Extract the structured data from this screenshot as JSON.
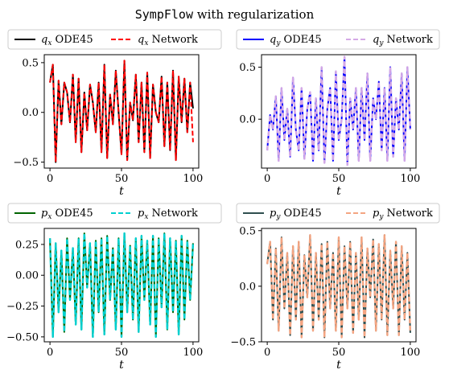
{
  "figure": {
    "title_mono": "SympFlow",
    "title_rest": " with regularization"
  },
  "chart_data": [
    {
      "type": "line",
      "xlabel": "t",
      "ylabel": "",
      "xlim": [
        -4,
        104
      ],
      "ylim": [
        -0.56,
        0.58
      ],
      "xticks": [
        0,
        50,
        100
      ],
      "xtick_labels": [
        "0",
        "50",
        "100"
      ],
      "yticks": [
        -0.5,
        0.0,
        0.5
      ],
      "ytick_labels": [
        "−0.5",
        "0.0",
        "0.5"
      ],
      "legend": {
        "position": "top",
        "entries": [
          {
            "label_sym": "q",
            "label_sub": "x",
            "label_rest": "ODE45",
            "color": "#000000",
            "dash": "solid"
          },
          {
            "label_sym": "q",
            "label_sub": "x",
            "label_rest": "Network",
            "color": "#ff0000",
            "dash": "dashed"
          }
        ]
      },
      "x": [
        0,
        2,
        4,
        6,
        8,
        10,
        12,
        14,
        16,
        18,
        20,
        22,
        24,
        26,
        28,
        30,
        32,
        34,
        36,
        38,
        40,
        42,
        44,
        46,
        48,
        50,
        52,
        54,
        56,
        58,
        60,
        62,
        64,
        66,
        68,
        70,
        72,
        74,
        76,
        78,
        80,
        82,
        84,
        86,
        88,
        90,
        92,
        94,
        96,
        98,
        100
      ],
      "series": [
        {
          "name": "qx ODE45",
          "color": "#000000",
          "dash": "solid",
          "width": 2.0,
          "values": [
            0.3,
            0.48,
            -0.5,
            0.32,
            -0.12,
            0.3,
            0.2,
            -0.1,
            0.38,
            -0.3,
            0.34,
            -0.4,
            0.2,
            -0.18,
            0.28,
            0.1,
            -0.2,
            0.3,
            -0.4,
            0.48,
            -0.46,
            0.18,
            -0.12,
            0.42,
            0.0,
            -0.42,
            0.52,
            -0.48,
            0.1,
            -0.08,
            0.38,
            -0.3,
            0.3,
            -0.4,
            0.4,
            -0.46,
            0.28,
            0.0,
            -0.1,
            0.36,
            -0.34,
            0.3,
            -0.38,
            0.42,
            -0.48,
            0.36,
            -0.1,
            0.34,
            -0.2,
            0.3,
            0.04
          ]
        },
        {
          "name": "qx Network",
          "color": "#ff0000",
          "dash": "dashed",
          "width": 2.0,
          "values": [
            0.3,
            0.48,
            -0.5,
            0.32,
            -0.12,
            0.3,
            0.2,
            -0.1,
            0.38,
            -0.3,
            0.34,
            -0.4,
            0.2,
            -0.18,
            0.28,
            0.1,
            -0.2,
            0.3,
            -0.4,
            0.48,
            -0.46,
            0.18,
            -0.12,
            0.42,
            0.0,
            -0.42,
            0.52,
            -0.48,
            0.1,
            -0.08,
            0.38,
            -0.3,
            0.3,
            -0.4,
            0.4,
            -0.46,
            0.28,
            0.0,
            -0.1,
            0.36,
            -0.34,
            0.3,
            -0.38,
            0.42,
            -0.48,
            0.36,
            -0.1,
            0.34,
            -0.2,
            0.3,
            -0.3
          ]
        }
      ]
    },
    {
      "type": "line",
      "xlabel": "t",
      "ylabel": "",
      "xlim": [
        -4,
        104
      ],
      "ylim": [
        -0.47,
        0.62
      ],
      "xticks": [
        0,
        50,
        100
      ],
      "xtick_labels": [
        "0",
        "50",
        "100"
      ],
      "yticks": [
        0.0,
        0.5
      ],
      "ytick_labels": [
        "0.0",
        "0.5"
      ],
      "legend": {
        "position": "top",
        "entries": [
          {
            "label_sym": "q",
            "label_sub": "y",
            "label_rest": "ODE45",
            "color": "#0000ff",
            "dash": "solid"
          },
          {
            "label_sym": "q",
            "label_sub": "y",
            "label_rest": "Network",
            "color": "#d4a8e6",
            "dash": "dashed"
          }
        ]
      },
      "x": [
        0,
        2,
        4,
        6,
        8,
        10,
        12,
        14,
        16,
        18,
        20,
        22,
        24,
        26,
        28,
        30,
        32,
        34,
        36,
        38,
        40,
        42,
        44,
        46,
        48,
        50,
        52,
        54,
        56,
        58,
        60,
        62,
        64,
        66,
        68,
        70,
        72,
        74,
        76,
        78,
        80,
        82,
        84,
        86,
        88,
        90,
        92,
        94,
        96,
        98,
        100
      ],
      "series": [
        {
          "name": "qy ODE45",
          "color": "#0000ff",
          "dash": "solid",
          "width": 2.0,
          "values": [
            -0.3,
            0.04,
            -0.1,
            0.22,
            -0.4,
            0.3,
            -0.2,
            0.1,
            -0.36,
            0.4,
            -0.1,
            -0.3,
            0.3,
            -0.38,
            0.1,
            0.26,
            -0.4,
            0.2,
            -0.3,
            0.5,
            -0.42,
            0.1,
            0.3,
            -0.4,
            0.46,
            -0.2,
            0.0,
            0.6,
            -0.44,
            0.2,
            -0.1,
            0.3,
            -0.4,
            0.3,
            -0.2,
            0.44,
            -0.4,
            0.2,
            0.0,
            0.36,
            -0.3,
            0.3,
            -0.4,
            0.5,
            -0.36,
            0.2,
            -0.1,
            0.44,
            -0.4,
            0.5,
            -0.1
          ]
        },
        {
          "name": "qy Network",
          "color": "#d4a8e6",
          "dash": "dashed",
          "width": 2.4,
          "values": [
            -0.3,
            0.04,
            -0.1,
            0.22,
            -0.4,
            0.3,
            -0.2,
            0.1,
            -0.36,
            0.4,
            -0.1,
            -0.3,
            0.3,
            -0.38,
            0.1,
            0.26,
            -0.4,
            0.2,
            -0.3,
            0.5,
            -0.42,
            0.1,
            0.3,
            -0.4,
            0.46,
            -0.2,
            0.0,
            0.6,
            -0.44,
            0.2,
            -0.1,
            0.3,
            -0.4,
            0.3,
            -0.2,
            0.44,
            -0.4,
            0.2,
            0.0,
            0.36,
            -0.3,
            0.3,
            -0.4,
            0.5,
            -0.36,
            0.2,
            -0.1,
            0.44,
            -0.4,
            0.5,
            -0.1
          ]
        }
      ]
    },
    {
      "type": "line",
      "xlabel": "t",
      "ylabel": "",
      "xlim": [
        -4,
        104
      ],
      "ylim": [
        -0.54,
        0.38
      ],
      "xticks": [
        0,
        50,
        100
      ],
      "xtick_labels": [
        "0",
        "50",
        "100"
      ],
      "yticks": [
        -0.5,
        -0.25,
        0.0,
        0.25
      ],
      "ytick_labels": [
        "−0.50",
        "−0.25",
        "0.00",
        "0.25"
      ],
      "legend": {
        "position": "top",
        "entries": [
          {
            "label_sym": "p",
            "label_sub": "x",
            "label_rest": "ODE45",
            "color": "#006400",
            "dash": "solid"
          },
          {
            "label_sym": "p",
            "label_sub": "x",
            "label_rest": "Network",
            "color": "#00d0d0",
            "dash": "dashed"
          }
        ]
      },
      "x": [
        0,
        2,
        4,
        6,
        8,
        10,
        12,
        14,
        16,
        18,
        20,
        22,
        24,
        26,
        28,
        30,
        32,
        34,
        36,
        38,
        40,
        42,
        44,
        46,
        48,
        50,
        52,
        54,
        56,
        58,
        60,
        62,
        64,
        66,
        68,
        70,
        72,
        74,
        76,
        78,
        80,
        82,
        84,
        86,
        88,
        90,
        92,
        94,
        96,
        98,
        100
      ],
      "series": [
        {
          "name": "px ODE45",
          "color": "#006400",
          "dash": "solid",
          "width": 2.0,
          "values": [
            0.3,
            -0.5,
            0.26,
            -0.3,
            0.2,
            -0.46,
            0.3,
            -0.2,
            0.22,
            -0.4,
            0.3,
            -0.44,
            0.34,
            -0.1,
            0.26,
            -0.5,
            0.28,
            -0.3,
            0.3,
            -0.48,
            0.32,
            -0.2,
            0.22,
            -0.44,
            0.3,
            -0.5,
            0.34,
            -0.3,
            0.24,
            -0.36,
            0.3,
            -0.46,
            0.32,
            -0.2,
            0.28,
            -0.4,
            0.32,
            -0.5,
            0.3,
            -0.26,
            0.34,
            -0.44,
            0.3,
            -0.3,
            0.28,
            -0.48,
            0.32,
            -0.36,
            0.28,
            -0.2,
            0.26
          ]
        },
        {
          "name": "px Network",
          "color": "#00d0d0",
          "dash": "dashed",
          "width": 2.4,
          "values": [
            0.3,
            -0.5,
            0.26,
            -0.3,
            0.2,
            -0.46,
            0.3,
            -0.2,
            0.22,
            -0.4,
            0.3,
            -0.44,
            0.34,
            -0.1,
            0.26,
            -0.5,
            0.28,
            -0.3,
            0.3,
            -0.48,
            0.32,
            -0.2,
            0.22,
            -0.44,
            0.3,
            -0.5,
            0.34,
            -0.3,
            0.24,
            -0.36,
            0.3,
            -0.46,
            0.32,
            -0.2,
            0.28,
            -0.4,
            0.32,
            -0.5,
            0.3,
            -0.26,
            0.34,
            -0.44,
            0.3,
            -0.3,
            0.28,
            -0.48,
            0.32,
            -0.36,
            0.28,
            -0.2,
            0.26
          ]
        }
      ]
    },
    {
      "type": "line",
      "xlabel": "t",
      "ylabel": "",
      "xlim": [
        -4,
        104
      ],
      "ylim": [
        -0.5,
        0.52
      ],
      "xticks": [
        0,
        50,
        100
      ],
      "xtick_labels": [
        "0",
        "50",
        "100"
      ],
      "yticks": [
        -0.5,
        0.0,
        0.5
      ],
      "ytick_labels": [
        "−0.5",
        "0.0",
        "0.5"
      ],
      "legend": {
        "position": "top",
        "entries": [
          {
            "label_sym": "p",
            "label_sub": "y",
            "label_rest": "ODE45",
            "color": "#2f4f4f",
            "dash": "solid"
          },
          {
            "label_sym": "p",
            "label_sub": "y",
            "label_rest": "Network",
            "color": "#f4a582",
            "dash": "dashed"
          }
        ]
      },
      "x": [
        0,
        2,
        4,
        6,
        8,
        10,
        12,
        14,
        16,
        18,
        20,
        22,
        24,
        26,
        28,
        30,
        32,
        34,
        36,
        38,
        40,
        42,
        44,
        46,
        48,
        50,
        52,
        54,
        56,
        58,
        60,
        62,
        64,
        66,
        68,
        70,
        72,
        74,
        76,
        78,
        80,
        82,
        84,
        86,
        88,
        90,
        92,
        94,
        96,
        98,
        100
      ],
      "series": [
        {
          "name": "py ODE45",
          "color": "#2f4f4f",
          "dash": "solid",
          "width": 2.0,
          "values": [
            0.2,
            0.4,
            -0.3,
            0.34,
            -0.4,
            0.44,
            -0.2,
            0.3,
            -0.44,
            0.36,
            -0.3,
            0.4,
            -0.46,
            0.28,
            -0.1,
            0.46,
            -0.4,
            0.3,
            -0.3,
            0.38,
            -0.46,
            0.4,
            -0.2,
            0.3,
            -0.4,
            0.44,
            -0.46,
            0.36,
            -0.2,
            0.4,
            -0.42,
            0.3,
            -0.3,
            0.44,
            -0.46,
            0.34,
            -0.1,
            0.42,
            -0.4,
            0.38,
            -0.3,
            0.46,
            -0.44,
            0.32,
            -0.2,
            0.4,
            -0.44,
            0.36,
            -0.3,
            0.3,
            -0.42
          ]
        },
        {
          "name": "py Network",
          "color": "#f4a582",
          "dash": "dashed",
          "width": 2.4,
          "values": [
            0.2,
            0.4,
            -0.3,
            0.34,
            -0.4,
            0.44,
            -0.2,
            0.3,
            -0.44,
            0.36,
            -0.3,
            0.4,
            -0.46,
            0.28,
            -0.1,
            0.46,
            -0.4,
            0.3,
            -0.3,
            0.38,
            -0.46,
            0.4,
            -0.2,
            0.3,
            -0.4,
            0.44,
            -0.46,
            0.36,
            -0.2,
            0.4,
            -0.42,
            0.3,
            -0.3,
            0.44,
            -0.46,
            0.34,
            -0.1,
            0.42,
            -0.4,
            0.38,
            -0.3,
            0.46,
            -0.44,
            0.32,
            -0.2,
            0.4,
            -0.44,
            0.36,
            -0.3,
            0.3,
            -0.42
          ]
        }
      ]
    }
  ]
}
